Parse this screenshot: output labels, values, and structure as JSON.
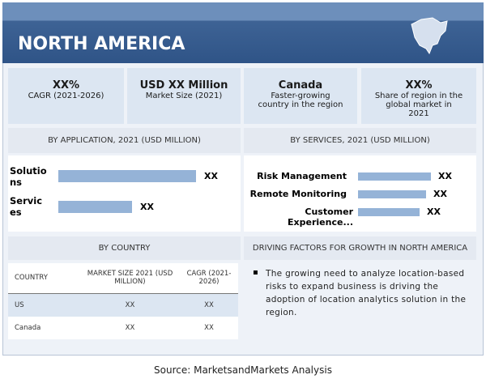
{
  "header": {
    "title": "NORTH AMERICA"
  },
  "stats": [
    {
      "value": "XX%",
      "label": "CAGR (2021-2026)"
    },
    {
      "value": "USD XX Million",
      "label": "Market Size (2021)"
    },
    {
      "value": "Canada",
      "label": "Faster-growing country in the region"
    },
    {
      "value": "XX%",
      "label": "Share of region in the global market in 2021"
    }
  ],
  "application": {
    "title": "BY APPLICATION, 2021 (USD MILLION)",
    "rows": [
      {
        "label": "Solutions",
        "value": "XX"
      },
      {
        "label": "Services",
        "value": "XX"
      }
    ]
  },
  "services": {
    "title": "BY SERVICES, 2021 (USD MILLION)",
    "rows": [
      {
        "label": "Risk Management",
        "value": "XX"
      },
      {
        "label": "Remote Monitoring",
        "value": "XX"
      },
      {
        "label": "Customer Experience...",
        "value": "XX"
      }
    ]
  },
  "country": {
    "title": "BY COUNTRY",
    "table": {
      "header": [
        "COUNTRY",
        "MARKET SIZE 2021 (USD MILLION)",
        "CAGR (2021-2026)"
      ],
      "rows": [
        [
          "US",
          "XX",
          "XX"
        ],
        [
          "Canada",
          "XX",
          "XX"
        ]
      ]
    }
  },
  "drivers": {
    "title": "DRIVING FACTORS FOR GROWTH IN NORTH AMERICA",
    "bullets": [
      "The growing need to analyze location-based risks to expand business is driving the adoption of location analytics solution in the region."
    ]
  },
  "source": "Source: MarketsandMarkets Analysis"
}
